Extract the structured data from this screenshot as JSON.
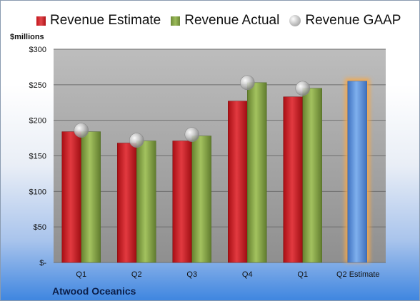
{
  "legend": {
    "estimate": "Revenue Estimate",
    "actual": "Revenue Actual",
    "gaap": "Revenue GAAP"
  },
  "unit_label": "$millions",
  "company": "Atwood Oceanics",
  "colors": {
    "estimate": "#c8161d",
    "actual": "#8aaa4b",
    "gaap": "#b8b8b8",
    "forecast": "#5b8fd6",
    "forecast_glow": "#f6a84a",
    "plot_bg": "#a6a6a6"
  },
  "chart_data": {
    "type": "bar",
    "categories": [
      "Q1",
      "Q2",
      "Q3",
      "Q4",
      "Q1",
      "Q2 Estimate"
    ],
    "series": [
      {
        "name": "Revenue Estimate",
        "values": [
          184,
          168,
          171,
          227,
          233,
          null
        ]
      },
      {
        "name": "Revenue Actual",
        "values": [
          184,
          171,
          178,
          253,
          245,
          255
        ]
      },
      {
        "name": "Revenue GAAP",
        "type": "scatter",
        "values": [
          186,
          172,
          180,
          253,
          245,
          null
        ]
      }
    ],
    "forecast_index": 5,
    "ylim": [
      0,
      300
    ],
    "yticks": [
      0,
      50,
      100,
      150,
      200,
      250,
      300
    ],
    "ytick_labels": [
      "$-",
      "$50",
      "$100",
      "$150",
      "$200",
      "$250",
      "$300"
    ],
    "ylabel": "$millions",
    "grid": true,
    "legend_position": "top"
  }
}
